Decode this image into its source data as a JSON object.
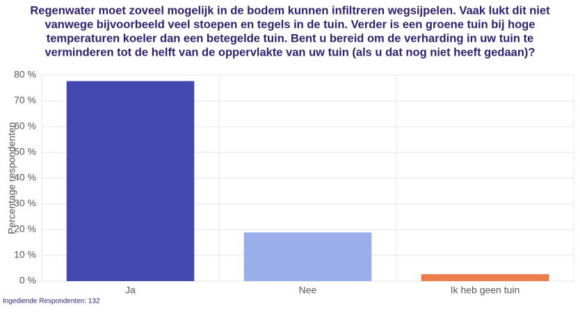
{
  "chart_data": {
    "type": "bar",
    "title": [
      "Regenwater moet zoveel mogelijk in de bodem kunnen infiltreren wegsijpelen. Vaak lukt dit niet",
      "vanwege bijvoorbeeld veel stoepen en tegels in de tuin. Verder is een groene tuin bij hoge",
      "temperaturen koeler dan een betegelde tuin. Bent u bereid om de verharding in uw tuin te",
      "verminderen tot de helft van de oppervlakte van uw tuin (als u dat nog niet heeft gedaan)?"
    ],
    "y_label": "Percentage respondenten",
    "categories": [
      "Ja",
      "Nee",
      "Ik heb geen tuin"
    ],
    "values": [
      77.7,
      18.9,
      2.7
    ],
    "colors": [
      "#4348b0",
      "#9aaeec",
      "#ec7d4b"
    ],
    "ylim": [
      0,
      80
    ],
    "yticks": [
      {
        "value": 0,
        "label": "0 %"
      },
      {
        "value": 10,
        "label": "10 %"
      },
      {
        "value": 20,
        "label": "20 %"
      },
      {
        "value": 30,
        "label": "30 %"
      },
      {
        "value": 40,
        "label": "40 %"
      },
      {
        "value": 50,
        "label": "50 %"
      },
      {
        "value": 60,
        "label": "60 %"
      },
      {
        "value": 70,
        "label": "70 %"
      },
      {
        "value": 80,
        "label": "80 %"
      }
    ],
    "grid": true,
    "footnote": "Ingediende Respondenten: 132"
  }
}
